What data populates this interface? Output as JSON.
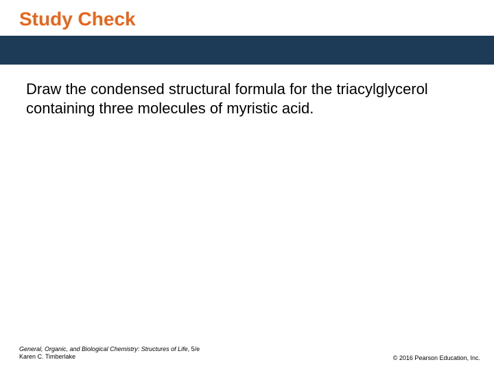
{
  "colors": {
    "title_color": "#e8651c",
    "band_color": "#1d3b56",
    "body_text_color": "#000000",
    "footer_color": "#000000",
    "background": "#ffffff"
  },
  "title": "Study Check",
  "body": "Draw the condensed structural formula for the triacylglycerol containing three molecules of myristic acid.",
  "footer": {
    "book_title": "General, Organic, and Biological Chemistry: Structures of Life",
    "edition": ", 5/e",
    "author": "Karen C. Timberlake",
    "copyright": "© 2016 Pearson Education, Inc."
  }
}
